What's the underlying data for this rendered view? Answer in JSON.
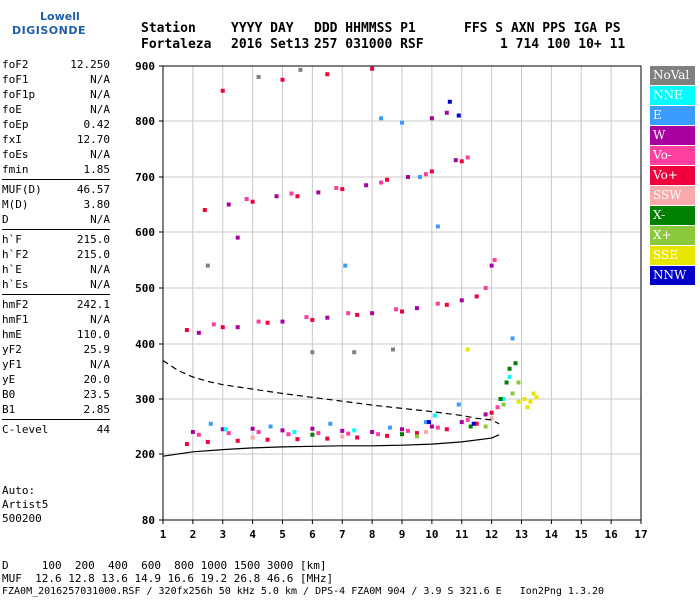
{
  "logo": {
    "line1": "Lowell",
    "line2": "DIGISONDE"
  },
  "header": {
    "labels": [
      "Station",
      "YYYY DAY",
      "DDD HHMMSS P1",
      "FFS S AXN PPS IGA PS"
    ],
    "values": [
      "Fortaleza",
      "2016 Set13",
      "257 031000 RSF",
      "1 714 100 10+ 11"
    ]
  },
  "params": [
    {
      "k": "foF2",
      "v": "12.250"
    },
    {
      "k": "foF1",
      "v": "N/A"
    },
    {
      "k": "foF1p",
      "v": "N/A"
    },
    {
      "k": "foE",
      "v": "N/A"
    },
    {
      "k": "foEp",
      "v": "0.42"
    },
    {
      "k": "fxI",
      "v": "12.70"
    },
    {
      "k": "foEs",
      "v": "N/A"
    },
    {
      "k": "fmin",
      "v": "1.85"
    },
    {
      "k": "MUF(D)",
      "v": "46.57"
    },
    {
      "k": "M(D)",
      "v": "3.80"
    },
    {
      "k": "D",
      "v": "N/A"
    },
    {
      "k": "h`F",
      "v": "215.0"
    },
    {
      "k": "h`F2",
      "v": "215.0"
    },
    {
      "k": "h`E",
      "v": "N/A"
    },
    {
      "k": "h`Es",
      "v": "N/A"
    },
    {
      "k": "hmF2",
      "v": "242.1"
    },
    {
      "k": "hmF1",
      "v": "N/A"
    },
    {
      "k": "hmE",
      "v": "110.0"
    },
    {
      "k": "yF2",
      "v": "25.9"
    },
    {
      "k": "yF1",
      "v": "N/A"
    },
    {
      "k": "yE",
      "v": "20.0"
    },
    {
      "k": "B0",
      "v": "23.5"
    },
    {
      "k": "B1",
      "v": "2.85"
    },
    {
      "k": "C-level",
      "v": "44"
    }
  ],
  "auto": [
    "Auto:",
    "Artist5",
    "500200"
  ],
  "legend": [
    {
      "label": "NoVal",
      "bg": "#808080",
      "fg": "#ffffff"
    },
    {
      "label": "NNE",
      "bg": "#00ffff",
      "fg": "#ffffff"
    },
    {
      "label": "E",
      "bg": "#3b9cff",
      "fg": "#ffffff"
    },
    {
      "label": "W",
      "bg": "#a8009f",
      "fg": "#ffffff"
    },
    {
      "label": "Vo-",
      "bg": "#ff3fa0",
      "fg": "#ffffff"
    },
    {
      "label": "Vo+",
      "bg": "#f0003c",
      "fg": "#ffffff"
    },
    {
      "label": "SSW",
      "bg": "#f9aaaa",
      "fg": "#ffffff"
    },
    {
      "label": "X-",
      "bg": "#008000",
      "fg": "#ffffff"
    },
    {
      "label": "X+",
      "bg": "#8cc83c",
      "fg": "#ffffff"
    },
    {
      "label": "SSE",
      "bg": "#e6e600",
      "fg": "#ffffff"
    },
    {
      "label": "NNW",
      "bg": "#0000c8",
      "fg": "#ffffff"
    }
  ],
  "footer": {
    "d_line": "D     100  200  400  600  800 1000 1500 3000 [km]",
    "muf_line": "MUF  12.6 12.8 13.6 14.9 16.6 19.2 26.8 46.6 [MHz]",
    "file_line": "FZA0M_2016257031000.RSF / 320fx256h 50 kHz 5.0 km / DPS-4 FZA0M 904 / 3.9 S 321.6 E   Ion2Png 1.3.20"
  },
  "chart_data": {
    "type": "scatter",
    "title": "",
    "xlabel": "",
    "ylabel": "",
    "xlim": [
      1,
      17
    ],
    "ylim": [
      80,
      900
    ],
    "x_ticks": [
      "1",
      "2",
      "3",
      "4",
      "5",
      "6",
      "7",
      "8",
      "9",
      "10",
      "11",
      "12",
      "13",
      "14",
      "15",
      "16",
      "17"
    ],
    "y_ticks": [
      "80",
      "200",
      "300",
      "400",
      "500",
      "600",
      "700",
      "800",
      "900"
    ],
    "grid": true,
    "scale_boundaries_km": [
      80,
      200,
      300,
      400,
      500,
      600,
      700,
      800,
      900
    ],
    "series": [
      {
        "name": "Vo+",
        "color": "#f0003c",
        "points": [
          [
            1.8,
            218
          ],
          [
            2.5,
            222
          ],
          [
            3.5,
            224
          ],
          [
            4.5,
            226
          ],
          [
            5.5,
            227
          ],
          [
            6.5,
            228
          ],
          [
            7.5,
            230
          ],
          [
            8.5,
            233
          ],
          [
            9.5,
            238
          ],
          [
            10.5,
            245
          ],
          [
            11.5,
            255
          ],
          [
            12.0,
            275
          ],
          [
            12.3,
            300
          ],
          [
            1.8,
            425
          ],
          [
            3.0,
            430
          ],
          [
            4.5,
            438
          ],
          [
            6.0,
            443
          ],
          [
            7.5,
            452
          ],
          [
            9.0,
            458
          ],
          [
            10.5,
            470
          ],
          [
            11.5,
            485
          ],
          [
            2.4,
            640
          ],
          [
            4.0,
            655
          ],
          [
            5.5,
            665
          ],
          [
            7.0,
            678
          ],
          [
            8.5,
            695
          ],
          [
            10.0,
            710
          ],
          [
            11.0,
            728
          ],
          [
            3.0,
            855
          ],
          [
            5.0,
            875
          ],
          [
            6.5,
            885
          ],
          [
            8.0,
            895
          ]
        ]
      },
      {
        "name": "W",
        "color": "#a8009f",
        "points": [
          [
            2.0,
            240
          ],
          [
            3.0,
            245
          ],
          [
            4.0,
            246
          ],
          [
            5.0,
            243
          ],
          [
            6.0,
            246
          ],
          [
            7.0,
            242
          ],
          [
            8.0,
            240
          ],
          [
            9.0,
            245
          ],
          [
            10.0,
            250
          ],
          [
            11.0,
            258
          ],
          [
            11.8,
            272
          ],
          [
            2.2,
            420
          ],
          [
            3.5,
            430
          ],
          [
            5.0,
            440
          ],
          [
            6.5,
            447
          ],
          [
            8.0,
            455
          ],
          [
            9.5,
            464
          ],
          [
            11.0,
            478
          ],
          [
            12.0,
            540
          ],
          [
            3.2,
            650
          ],
          [
            4.8,
            665
          ],
          [
            6.2,
            672
          ],
          [
            7.8,
            685
          ],
          [
            9.2,
            700
          ],
          [
            10.8,
            730
          ],
          [
            3.5,
            590
          ],
          [
            10.0,
            805
          ],
          [
            10.5,
            815
          ]
        ]
      },
      {
        "name": "Vo-",
        "color": "#ff3fa0",
        "points": [
          [
            2.2,
            235
          ],
          [
            3.2,
            238
          ],
          [
            4.2,
            240
          ],
          [
            5.2,
            236
          ],
          [
            6.2,
            238
          ],
          [
            7.2,
            237
          ],
          [
            8.2,
            236
          ],
          [
            9.2,
            242
          ],
          [
            10.2,
            248
          ],
          [
            11.2,
            262
          ],
          [
            12.2,
            285
          ],
          [
            2.7,
            435
          ],
          [
            4.2,
            440
          ],
          [
            5.8,
            448
          ],
          [
            7.2,
            455
          ],
          [
            8.8,
            462
          ],
          [
            10.2,
            472
          ],
          [
            11.8,
            500
          ],
          [
            12.1,
            550
          ],
          [
            3.8,
            660
          ],
          [
            5.3,
            670
          ],
          [
            6.8,
            680
          ],
          [
            8.3,
            690
          ],
          [
            9.8,
            705
          ],
          [
            11.2,
            735
          ]
        ]
      },
      {
        "name": "E",
        "color": "#3b9cff",
        "points": [
          [
            2.6,
            255
          ],
          [
            4.6,
            250
          ],
          [
            6.6,
            255
          ],
          [
            8.6,
            248
          ],
          [
            9.8,
            258
          ],
          [
            10.9,
            290
          ],
          [
            12.7,
            410
          ],
          [
            7.1,
            540
          ],
          [
            10.2,
            610
          ],
          [
            9.6,
            700
          ],
          [
            8.3,
            805
          ],
          [
            9.0,
            797
          ]
        ]
      },
      {
        "name": "NNE",
        "color": "#00ffff",
        "points": [
          [
            3.1,
            245
          ],
          [
            5.4,
            240
          ],
          [
            7.4,
            243
          ],
          [
            10.1,
            270
          ],
          [
            12.4,
            300
          ],
          [
            12.6,
            340
          ]
        ]
      },
      {
        "name": "X-",
        "color": "#008000",
        "points": [
          [
            6.0,
            235
          ],
          [
            9.0,
            236
          ],
          [
            11.3,
            250
          ],
          [
            12.3,
            300
          ],
          [
            12.5,
            330
          ],
          [
            12.6,
            355
          ],
          [
            12.8,
            365
          ]
        ]
      },
      {
        "name": "X+",
        "color": "#8cc83c",
        "points": [
          [
            9.5,
            232
          ],
          [
            11.8,
            250
          ],
          [
            12.4,
            290
          ],
          [
            12.7,
            310
          ],
          [
            12.9,
            330
          ]
        ]
      },
      {
        "name": "SSE",
        "color": "#e6e600",
        "points": [
          [
            12.9,
            295
          ],
          [
            13.1,
            300
          ],
          [
            13.3,
            295
          ],
          [
            13.5,
            303
          ],
          [
            13.2,
            285
          ],
          [
            13.4,
            310
          ],
          [
            11.2,
            390
          ]
        ]
      },
      {
        "name": "NNW",
        "color": "#0000c8",
        "points": [
          [
            9.9,
            258
          ],
          [
            10.6,
            835
          ],
          [
            10.9,
            810
          ],
          [
            11.4,
            255
          ]
        ]
      },
      {
        "name": "SSW",
        "color": "#f9aaaa",
        "points": [
          [
            4.0,
            230
          ],
          [
            7.0,
            232
          ],
          [
            9.8,
            240
          ],
          [
            12.0,
            265
          ]
        ]
      },
      {
        "name": "NoVal",
        "color": "#808080",
        "points": [
          [
            6.0,
            385
          ],
          [
            7.4,
            385
          ],
          [
            8.7,
            390
          ],
          [
            4.2,
            880
          ],
          [
            5.6,
            893
          ],
          [
            2.5,
            540
          ]
        ]
      }
    ],
    "curves": [
      {
        "type": "profile",
        "style": "dashed",
        "x": [
          1.0,
          1.5,
          2.0,
          2.5,
          3.0,
          4.0,
          5.0,
          6.0,
          7.0,
          8.0,
          9.0,
          10.0,
          11.0,
          11.5,
          12.0,
          12.25
        ],
        "y": [
          370,
          352,
          340,
          332,
          326,
          318,
          310,
          303,
          296,
          289,
          283,
          277,
          270,
          265,
          262,
          255
        ]
      },
      {
        "type": "trace",
        "style": "solid",
        "x": [
          1.0,
          2.0,
          3.0,
          4.0,
          5.0,
          6.0,
          7.0,
          8.0,
          9.0,
          10.0,
          11.0,
          12.0,
          12.25
        ],
        "y": [
          196,
          204,
          208,
          211,
          213,
          214,
          215,
          215,
          216,
          218,
          222,
          229,
          235
        ]
      }
    ]
  }
}
